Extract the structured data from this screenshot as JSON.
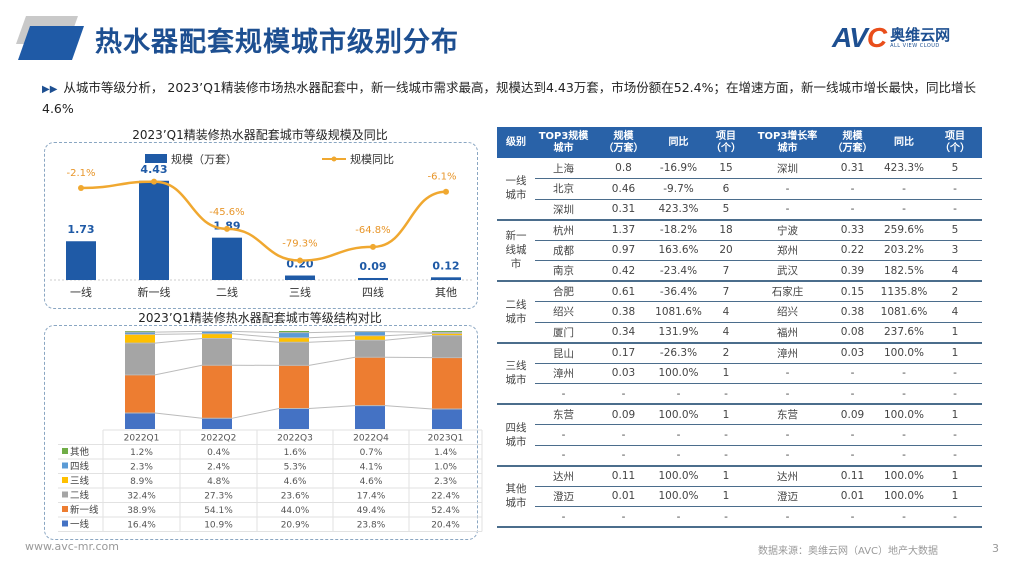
{
  "header": {
    "title": "热水器配套规模城市级别分布",
    "logo_mark": "AVC",
    "logo_cn": "奥维云网",
    "logo_en": "ALL VIEW CLOUD"
  },
  "summary": "从城市等级分析， 2023’Q1精装修市场热水器配套中，新一线城市需求最高，规模达到4.43万套，市场份额在52.4%；在增速方面，新一线城市增长最快，同比增长4.6%",
  "chart_data": [
    {
      "type": "bar+line",
      "title": "2023’Q1精装修热水器配套城市等级规模及同比",
      "categories": [
        "一线",
        "新一线",
        "二线",
        "三线",
        "四线",
        "其他"
      ],
      "series": [
        {
          "name": "规模（万套）",
          "type": "bar",
          "values": [
            1.73,
            4.43,
            1.89,
            0.2,
            0.09,
            0.12
          ],
          "labels": [
            "1.73",
            "4.43",
            "1.89",
            "0.20",
            "0.09",
            "0.12"
          ],
          "color": "#1f5aa6"
        },
        {
          "name": "规模同比",
          "type": "line",
          "values": [
            -2.1,
            4.6,
            -45.6,
            -79.3,
            -64.8,
            -6.1
          ],
          "labels": [
            "-2.1%",
            "",
            "-45.6%",
            "-79.3%",
            "-64.8%",
            "-6.1%"
          ],
          "color": "#f0a830"
        }
      ],
      "legend": "top"
    },
    {
      "type": "stacked-bar",
      "title": "2023’Q1精装修热水器配套城市等级结构对比",
      "categories": [
        "2022Q1",
        "2022Q2",
        "2022Q3",
        "2022Q4",
        "2023Q1"
      ],
      "series": [
        {
          "name": "其他",
          "color": "#70ad47",
          "values": [
            1.2,
            0.4,
            1.6,
            0.7,
            1.4
          ],
          "labels": [
            "1.2%",
            "0.4%",
            "1.6%",
            "0.7%",
            "1.4%"
          ]
        },
        {
          "name": "四线",
          "color": "#5b9bd5",
          "values": [
            2.3,
            2.4,
            5.3,
            4.1,
            1.0
          ],
          "labels": [
            "2.3%",
            "2.4%",
            "5.3%",
            "4.1%",
            "1.0%"
          ]
        },
        {
          "name": "三线",
          "color": "#ffc000",
          "values": [
            8.9,
            4.8,
            4.6,
            4.6,
            2.3
          ],
          "labels": [
            "8.9%",
            "4.8%",
            "4.6%",
            "4.6%",
            "2.3%"
          ]
        },
        {
          "name": "二线",
          "color": "#a5a5a5",
          "values": [
            32.4,
            27.3,
            23.6,
            17.4,
            22.4
          ],
          "labels": [
            "32.4%",
            "27.3%",
            "23.6%",
            "17.4%",
            "22.4%"
          ]
        },
        {
          "name": "新一线",
          "color": "#ed7d31",
          "values": [
            38.9,
            54.1,
            44.0,
            49.4,
            52.4
          ],
          "labels": [
            "38.9%",
            "54.1%",
            "44.0%",
            "49.4%",
            "52.4%"
          ]
        },
        {
          "name": "一线",
          "color": "#4472c4",
          "values": [
            16.4,
            10.9,
            20.9,
            23.8,
            20.4
          ],
          "labels": [
            "16.4%",
            "10.9%",
            "20.9%",
            "23.8%",
            "20.4%"
          ]
        }
      ],
      "legend": "data-table"
    }
  ],
  "table": {
    "headers": [
      "级别",
      "TOP3规模\n城市",
      "规模\n（万套）",
      "同比",
      "项目\n（个）",
      "TOP3增长率\n城市",
      "规模\n（万套）",
      "同比",
      "项目\n（个）"
    ],
    "groups": [
      {
        "level": "一线\n城市",
        "rows": [
          [
            "上海",
            "0.8",
            "-16.9%",
            "15",
            "深圳",
            "0.31",
            "423.3%",
            "5"
          ],
          [
            "北京",
            "0.46",
            "-9.7%",
            "6",
            "-",
            "-",
            "-",
            "-"
          ],
          [
            "深圳",
            "0.31",
            "423.3%",
            "5",
            "-",
            "-",
            "-",
            "-"
          ]
        ]
      },
      {
        "level": "新一\n线城\n市",
        "rows": [
          [
            "杭州",
            "1.37",
            "-18.2%",
            "18",
            "宁波",
            "0.33",
            "259.6%",
            "5"
          ],
          [
            "成都",
            "0.97",
            "163.6%",
            "20",
            "郑州",
            "0.22",
            "203.2%",
            "3"
          ],
          [
            "南京",
            "0.42",
            "-23.4%",
            "7",
            "武汉",
            "0.39",
            "182.5%",
            "4"
          ]
        ]
      },
      {
        "level": "二线\n城市",
        "rows": [
          [
            "合肥",
            "0.61",
            "-36.4%",
            "7",
            "石家庄",
            "0.15",
            "1135.8%",
            "2"
          ],
          [
            "绍兴",
            "0.38",
            "1081.6%",
            "4",
            "绍兴",
            "0.38",
            "1081.6%",
            "4"
          ],
          [
            "厦门",
            "0.34",
            "131.9%",
            "4",
            "福州",
            "0.08",
            "237.6%",
            "1"
          ]
        ]
      },
      {
        "level": "三线\n城市",
        "rows": [
          [
            "昆山",
            "0.17",
            "-26.3%",
            "2",
            "漳州",
            "0.03",
            "100.0%",
            "1"
          ],
          [
            "漳州",
            "0.03",
            "100.0%",
            "1",
            "-",
            "-",
            "-",
            "-"
          ],
          [
            "-",
            "-",
            "-",
            "-",
            "-",
            "-",
            "-",
            "-"
          ]
        ]
      },
      {
        "level": "四线\n城市",
        "rows": [
          [
            "东营",
            "0.09",
            "100.0%",
            "1",
            "东营",
            "0.09",
            "100.0%",
            "1"
          ],
          [
            "-",
            "-",
            "-",
            "-",
            "-",
            "-",
            "-",
            "-"
          ],
          [
            "-",
            "-",
            "-",
            "-",
            "-",
            "-",
            "-",
            "-"
          ]
        ]
      },
      {
        "level": "其他\n城市",
        "rows": [
          [
            "达州",
            "0.11",
            "100.0%",
            "1",
            "达州",
            "0.11",
            "100.0%",
            "1"
          ],
          [
            "澄迈",
            "0.01",
            "100.0%",
            "1",
            "澄迈",
            "0.01",
            "100.0%",
            "1"
          ],
          [
            "-",
            "-",
            "-",
            "-",
            "-",
            "-",
            "-",
            "-"
          ]
        ]
      }
    ]
  },
  "footer": {
    "url": "www.avc-mr.com",
    "source": "数据来源：奥维云网（AVC）地产大数据",
    "page": "3"
  }
}
